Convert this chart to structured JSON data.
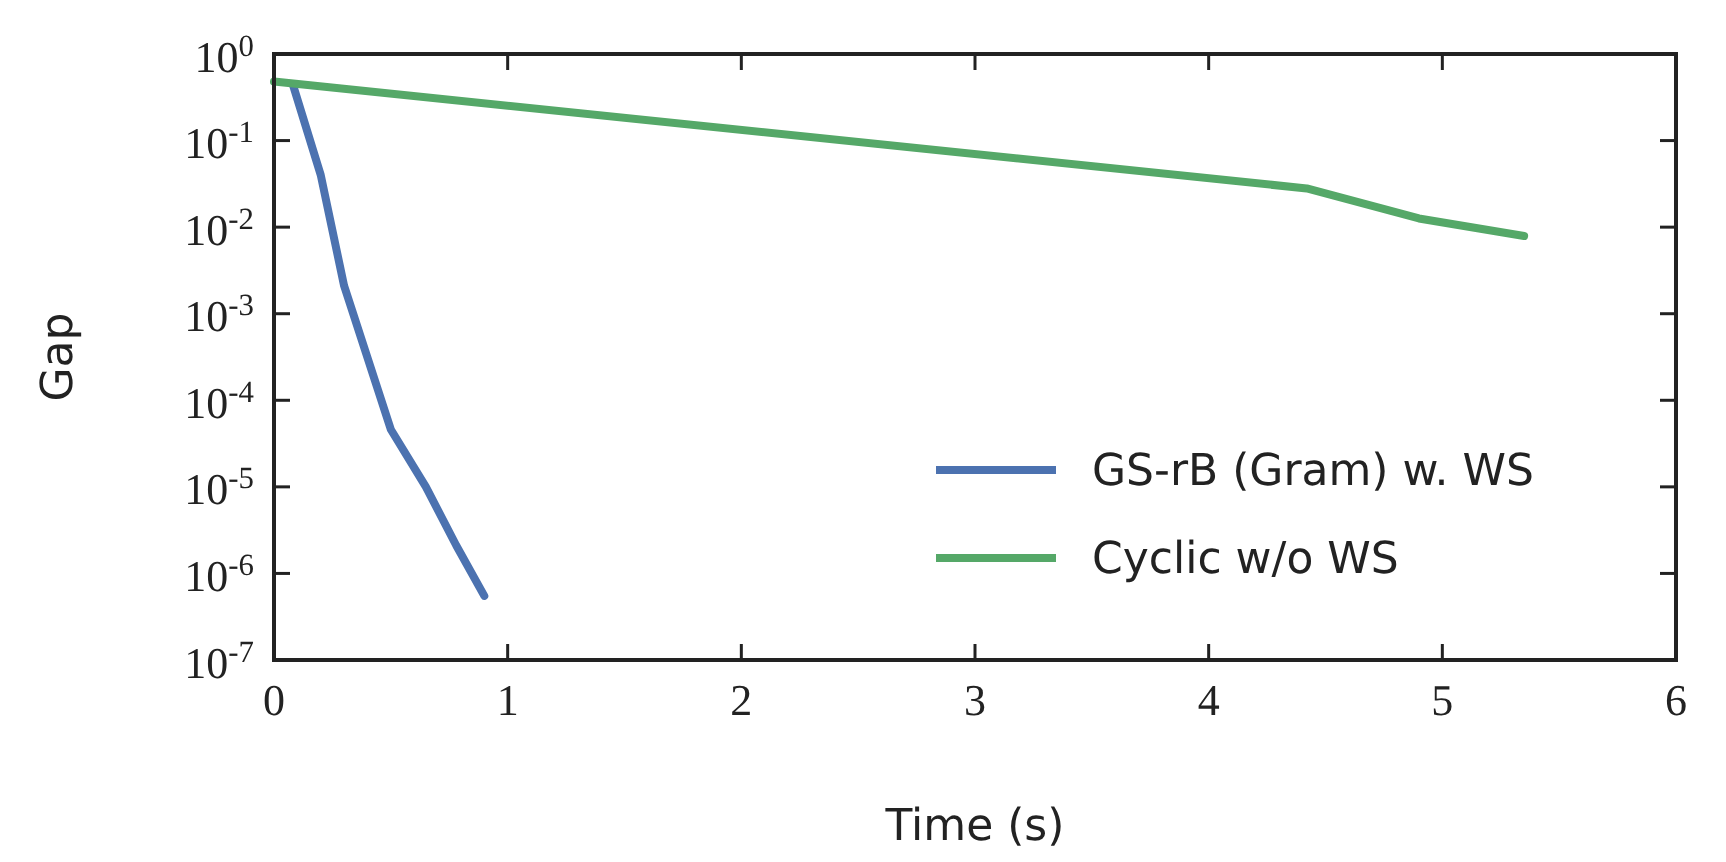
{
  "chart_data": {
    "type": "line",
    "xlabel": "Time (s)",
    "ylabel": "Gap",
    "log": "y",
    "xlim": [
      0,
      6
    ],
    "xticks": [
      0,
      1,
      2,
      3,
      4,
      5,
      6
    ],
    "ylim": [
      1e-07,
      1
    ],
    "yticks": [
      {
        "value": 1,
        "label": "10$^{0}$"
      },
      {
        "value": 0.1,
        "label": "10$^{-1}$"
      },
      {
        "value": 0.01,
        "label": "10$^{-2}$"
      },
      {
        "value": 0.001,
        "label": "10$^{-3}$"
      },
      {
        "value": 0.0001,
        "label": "10$^{-4}$"
      },
      {
        "value": 1e-05,
        "label": "10$^{-5}$"
      },
      {
        "value": 1e-06,
        "label": "10$^{-6}$"
      },
      {
        "value": 1e-07,
        "label": "10$^{-7}$"
      }
    ],
    "grid": false,
    "legend": "bottom right",
    "line_style": "solid",
    "marker": "none",
    "series": [
      {
        "name": "GS-rB (Gram) w. WS",
        "color": "#4c72b0",
        "x": [
          0.08,
          0.2,
          0.3,
          0.5,
          0.65,
          0.78,
          0.9
        ],
        "values": [
          0.45,
          0.04,
          0.0021,
          4.6e-05,
          1e-05,
          2.1e-06,
          5.5e-07
        ]
      },
      {
        "name": "Cyclic w/o WS",
        "color": "#55a868",
        "x": [
          0,
          4.42,
          4.9,
          5.35
        ],
        "values": [
          0.48,
          0.028,
          0.0126,
          0.0079
        ]
      }
    ]
  }
}
